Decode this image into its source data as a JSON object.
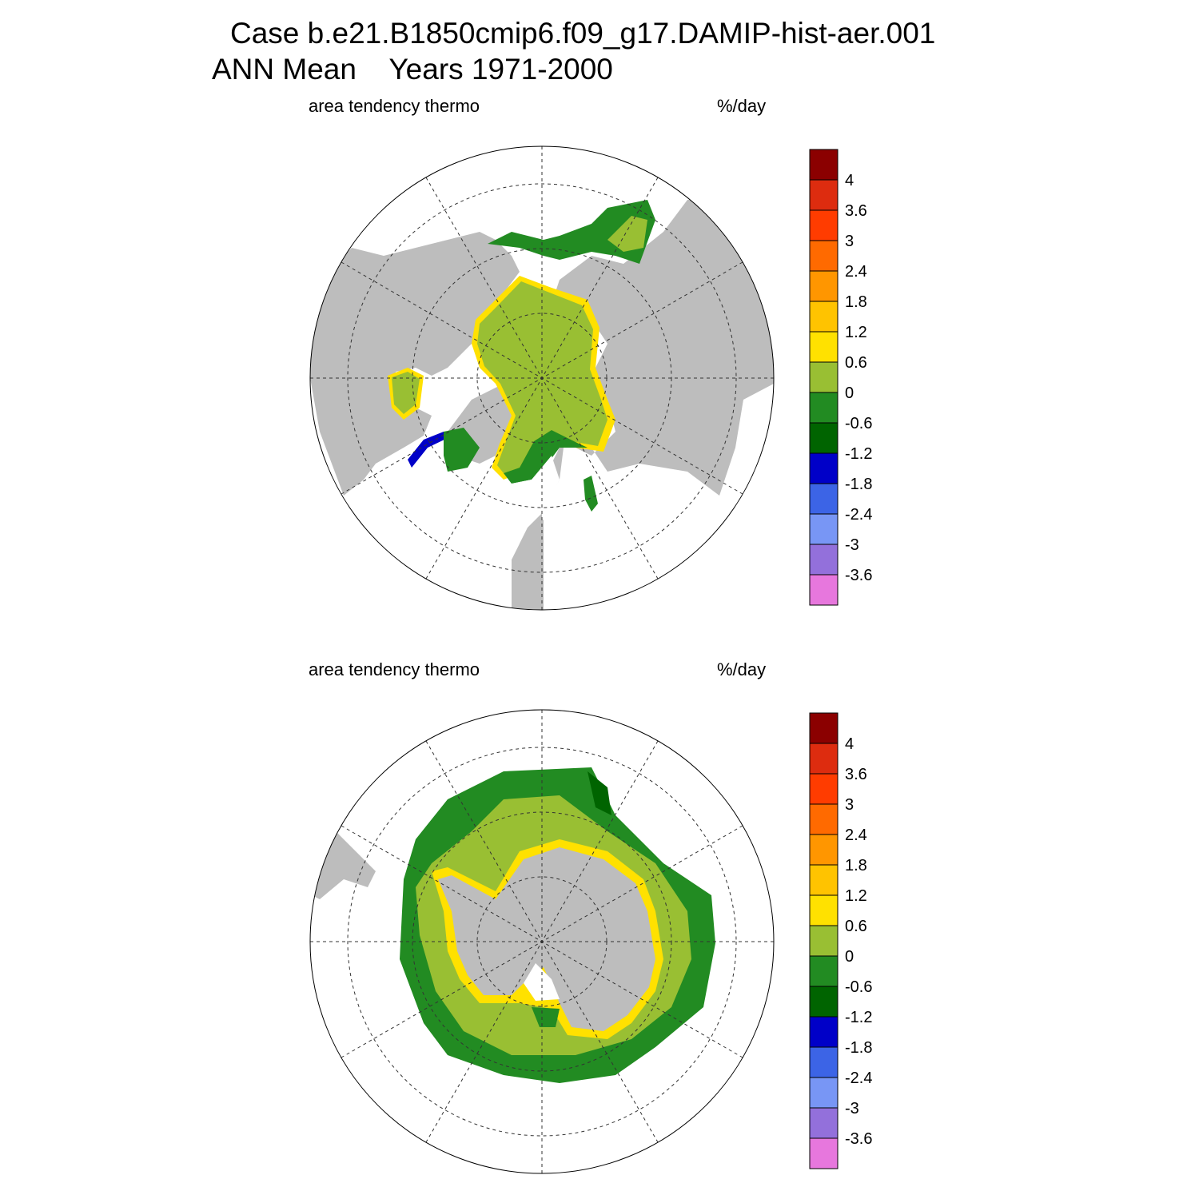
{
  "title": {
    "line1": "Case b.e21.B1850cmip6.f09_g17.DAMIP-hist-aer.001",
    "line2": "ANN Mean    Years 1971-2000"
  },
  "panels": [
    {
      "id": "north",
      "hemisphere": "Northern Hemisphere polar stereographic",
      "left_label": "area tendency thermo",
      "right_label": "%/day"
    },
    {
      "id": "south",
      "hemisphere": "Southern Hemisphere polar stereographic",
      "left_label": "area tendency thermo",
      "right_label": "%/day"
    }
  ],
  "colorbar": {
    "labels": [
      "4",
      "3.6",
      "3",
      "2.4",
      "1.8",
      "1.2",
      "0.6",
      "0",
      "-0.6",
      "-1.2",
      "-1.8",
      "-2.4",
      "-3",
      "-3.6"
    ],
    "colors": [
      "#8b0000",
      "#dd2c0f",
      "#ff3c00",
      "#ff6a00",
      "#ff9600",
      "#ffc300",
      "#ffe100",
      "#99bf33",
      "#228b22",
      "#006400",
      "#0000c8",
      "#3c64e6",
      "#7896f5",
      "#9370db",
      "#e777dd"
    ]
  },
  "colors": {
    "land": "#bdbdbd",
    "ocean_open": "#ffffff",
    "ice_interior": "#99bf33",
    "ice_edge": "#228b22",
    "ice_edge_dark": "#006400",
    "coast_band_yellow": "#ffe100",
    "coast_band_orange": "#ffc300",
    "coast_band_red": "#dd2c0f",
    "negative_blue": "#0000c8"
  }
}
